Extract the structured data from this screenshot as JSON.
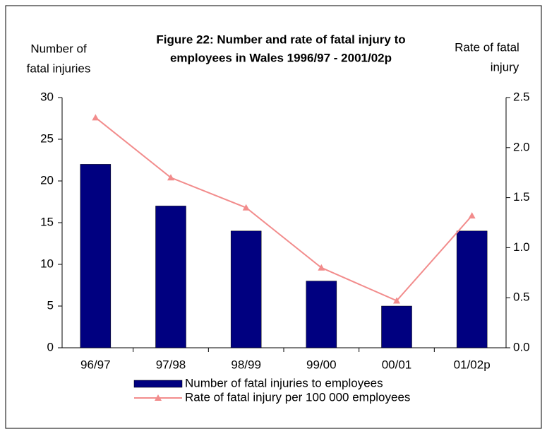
{
  "chart_data": {
    "type": "bar_line",
    "title": [
      "Figure 22:  Number and rate of fatal injury to",
      "employees in Wales 1996/97 - 2001/02p"
    ],
    "y_label": [
      "Number of",
      "fatal injuries"
    ],
    "y2_label": [
      "Rate of fatal",
      "injury"
    ],
    "categories": [
      "96/97",
      "97/98",
      "98/99",
      "99/00",
      "00/01",
      "01/02p"
    ],
    "series": [
      {
        "name": "Number of fatal injuries to employees",
        "type": "bar",
        "color": "#000080",
        "values": [
          22,
          17,
          14,
          8,
          5,
          14
        ]
      },
      {
        "name": "Rate of fatal injury per 100 000  employees",
        "type": "line",
        "color": "#f28c8c",
        "axis": "y2",
        "values": [
          2.3,
          1.7,
          1.4,
          0.8,
          0.47,
          1.32
        ]
      }
    ],
    "ylim": [
      0,
      30
    ],
    "yticks": [
      0,
      5,
      10,
      15,
      20,
      25,
      30
    ],
    "y2lim": [
      0,
      2.5
    ],
    "y2ticks": [
      {
        "value": 0,
        "label": "0.0"
      },
      0.5,
      {
        "value": 1,
        "label": "1.0"
      },
      1.5,
      {
        "value": 2,
        "label": "2.0"
      },
      2.5
    ],
    "legend": "bottom"
  }
}
